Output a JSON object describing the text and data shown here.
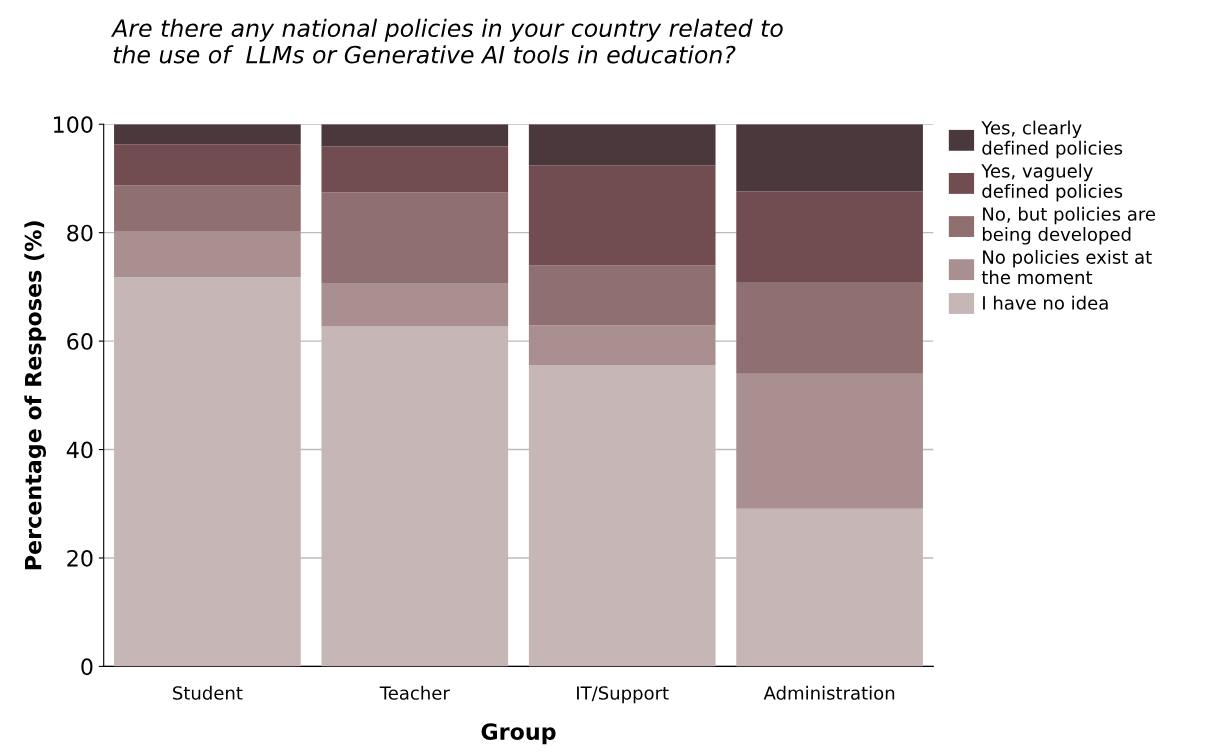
{
  "chart_data": {
    "type": "bar",
    "stacked": true,
    "title": "Are there any national policies in your country related to\nthe use of  LLMs or Generative AI tools in education?",
    "xlabel": "Group",
    "ylabel": "Percentage of Resposes (%)",
    "categories": [
      "Student",
      "Teacher",
      "IT/Support",
      "Administration"
    ],
    "series": [
      {
        "name": "I have no idea",
        "color": "#c6b6b6",
        "values": [
          71.8,
          62.7,
          55.5,
          29.1
        ]
      },
      {
        "name": "No policies exist at\nthe moment",
        "color": "#a98f8f",
        "values": [
          8.5,
          8.0,
          7.4,
          24.9
        ]
      },
      {
        "name": "No, but policies are\nbeing developed",
        "color": "#8f6f6f",
        "values": [
          8.4,
          16.7,
          11.1,
          16.9
        ]
      },
      {
        "name": "Yes, vaguely\ndefined policies",
        "color": "#714d52",
        "values": [
          7.6,
          8.5,
          18.4,
          16.7
        ]
      },
      {
        "name": "Yes, clearly\ndefined policies",
        "color": "#4a383d",
        "values": [
          3.7,
          4.1,
          7.6,
          12.4
        ]
      }
    ],
    "ylim": [
      0,
      100
    ],
    "yticks": [
      0,
      20,
      40,
      60,
      80,
      100
    ],
    "grid": "y",
    "legend": "right"
  }
}
